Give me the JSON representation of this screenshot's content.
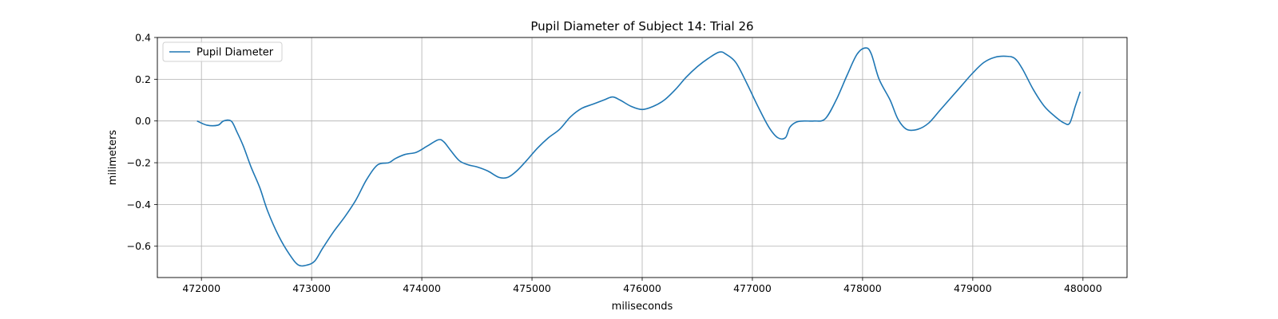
{
  "chart_data": {
    "type": "line",
    "title": "Pupil Diameter of Subject 14: Trial 26",
    "xlabel": "miliseconds",
    "ylabel": "milimeters",
    "xlim": [
      471600,
      480400
    ],
    "ylim": [
      -0.75,
      0.4
    ],
    "xticks": [
      472000,
      473000,
      474000,
      475000,
      476000,
      477000,
      478000,
      479000,
      480000
    ],
    "yticks": [
      0.4,
      0.2,
      0.0,
      -0.2,
      -0.4,
      -0.6
    ],
    "ytick_labels": [
      "0.4",
      "0.2",
      "0.0",
      "−0.2",
      "−0.4",
      "−0.6"
    ],
    "grid": true,
    "legend_position": "upper-left",
    "series": [
      {
        "name": "Pupil Diameter",
        "color": "#1f77b4",
        "x": [
          471960,
          472050,
          472150,
          472200,
          472270,
          472320,
          472380,
          472450,
          472530,
          472600,
          472700,
          472800,
          472880,
          472960,
          473030,
          473100,
          473200,
          473300,
          473400,
          473500,
          473600,
          473700,
          473760,
          473850,
          473950,
          474050,
          474150,
          474200,
          474260,
          474340,
          474420,
          474500,
          474600,
          474700,
          474780,
          474860,
          474950,
          475050,
          475150,
          475250,
          475350,
          475450,
          475550,
          475650,
          475730,
          475800,
          475900,
          476000,
          476100,
          476200,
          476300,
          476400,
          476500,
          476600,
          476700,
          476760,
          476850,
          476950,
          477050,
          477150,
          477230,
          477300,
          477340,
          477400,
          477470,
          477560,
          477660,
          477760,
          477860,
          477950,
          478030,
          478080,
          478150,
          478250,
          478320,
          478400,
          478500,
          478600,
          478700,
          478800,
          478900,
          479000,
          479100,
          479200,
          479300,
          479380,
          479450,
          479550,
          479650,
          479750,
          479830,
          479880,
          479930,
          479975
        ],
        "y": [
          0.0,
          -0.02,
          -0.02,
          0.0,
          0.0,
          -0.05,
          -0.12,
          -0.22,
          -0.32,
          -0.43,
          -0.55,
          -0.64,
          -0.69,
          -0.69,
          -0.67,
          -0.61,
          -0.53,
          -0.46,
          -0.38,
          -0.28,
          -0.21,
          -0.2,
          -0.18,
          -0.16,
          -0.15,
          -0.12,
          -0.09,
          -0.1,
          -0.14,
          -0.19,
          -0.21,
          -0.22,
          -0.24,
          -0.27,
          -0.27,
          -0.24,
          -0.19,
          -0.13,
          -0.08,
          -0.04,
          0.02,
          0.06,
          0.08,
          0.1,
          0.115,
          0.1,
          0.07,
          0.055,
          0.07,
          0.1,
          0.15,
          0.21,
          0.26,
          0.3,
          0.33,
          0.32,
          0.28,
          0.18,
          0.07,
          -0.03,
          -0.08,
          -0.08,
          -0.03,
          -0.005,
          0.0,
          0.0,
          0.01,
          0.1,
          0.22,
          0.32,
          0.35,
          0.32,
          0.2,
          0.1,
          0.01,
          -0.04,
          -0.04,
          -0.01,
          0.05,
          0.11,
          0.17,
          0.23,
          0.28,
          0.305,
          0.31,
          0.3,
          0.25,
          0.15,
          0.07,
          0.02,
          -0.01,
          -0.01,
          0.07,
          0.14
        ]
      }
    ]
  }
}
